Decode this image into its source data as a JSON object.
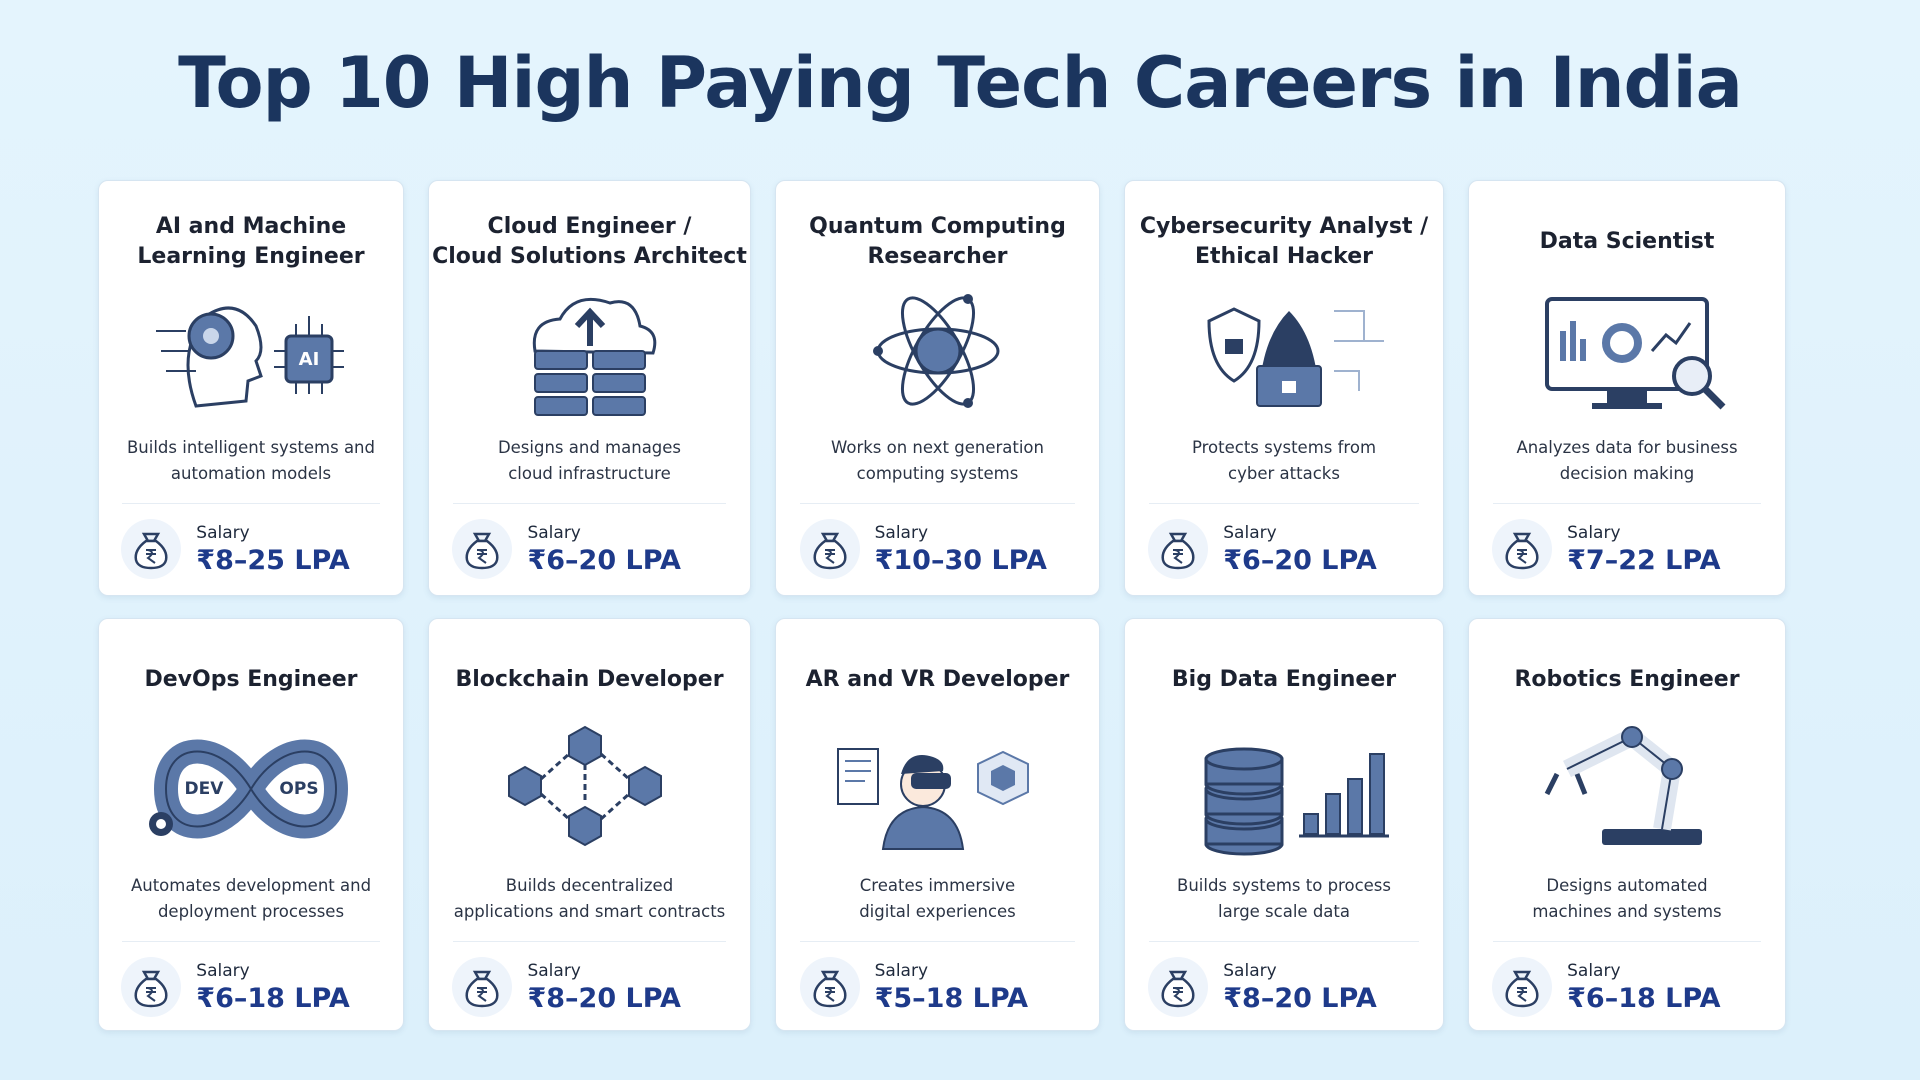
{
  "header": {
    "title": "Top 10 High Paying Tech Careers in India"
  },
  "cards": [
    {
      "title_lines": [
        "AI and Machine",
        "Learning Engineer"
      ],
      "icon_labels": [
        "AI"
      ],
      "description_lines": [
        "Builds intelligent systems and",
        "automation models"
      ],
      "salary_label": "Salary",
      "salary": "₹8–25 LPA"
    },
    {
      "title_lines": [
        "Cloud Engineer /",
        "Cloud Solutions Architect"
      ],
      "description_lines": [
        "Designs and manages",
        "cloud infrastructure"
      ],
      "salary_label": "Salary",
      "salary": "₹6–20 LPA"
    },
    {
      "title_lines": [
        "Quantum Computing",
        "Researcher"
      ],
      "description_lines": [
        "Works on next generation",
        "computing systems"
      ],
      "salary_label": "Salary",
      "salary": "₹10–30 LPA"
    },
    {
      "title_lines": [
        "Cybersecurity Analyst /",
        "Ethical Hacker"
      ],
      "description_lines": [
        "Protects systems from",
        "cyber attacks"
      ],
      "salary_label": "Salary",
      "salary": "₹6–20 LPA"
    },
    {
      "title_lines": [
        "Data Scientist"
      ],
      "description_lines": [
        "Analyzes data for business",
        "decision making"
      ],
      "salary_label": "Salary",
      "salary": "₹7–22 LPA"
    },
    {
      "title_lines": [
        "DevOps Engineer"
      ],
      "icon_labels": [
        "DEV",
        "OPS"
      ],
      "description_lines": [
        "Automates development and",
        "deployment processes"
      ],
      "salary_label": "Salary",
      "salary": "₹6–18 LPA"
    },
    {
      "title_lines": [
        "Blockchain Developer"
      ],
      "description_lines": [
        "Builds decentralized",
        "applications and smart contracts"
      ],
      "salary_label": "Salary",
      "salary": "₹8–20 LPA"
    },
    {
      "title_lines": [
        "AR and VR Developer"
      ],
      "description_lines": [
        "Creates immersive",
        "digital experiences"
      ],
      "salary_label": "Salary",
      "salary": "₹5–18 LPA"
    },
    {
      "title_lines": [
        "Big Data Engineer"
      ],
      "description_lines": [
        "Builds systems to process",
        "large scale data"
      ],
      "salary_label": "Salary",
      "salary": "₹8–20 LPA"
    },
    {
      "title_lines": [
        "Robotics Engineer"
      ],
      "description_lines": [
        "Designs automated",
        "machines and systems"
      ],
      "salary_label": "Salary",
      "salary": "₹6–18 LPA"
    }
  ]
}
